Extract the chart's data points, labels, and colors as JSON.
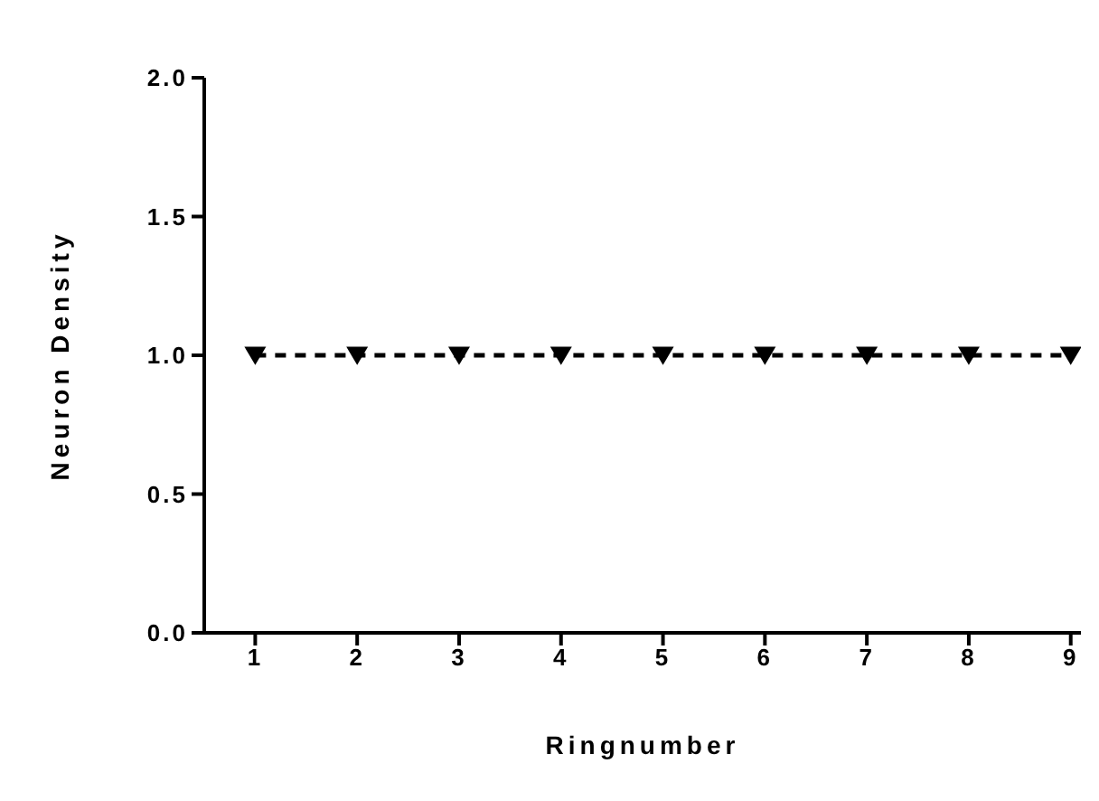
{
  "chart_data": {
    "type": "line",
    "xlabel": "Ringnumber",
    "ylabel": "Neuron Density",
    "x": [
      1,
      2,
      3,
      4,
      5,
      6,
      7,
      8,
      9
    ],
    "series": [
      {
        "color": "#000000",
        "values": [
          1,
          1,
          1,
          1,
          1,
          1,
          1,
          1,
          1
        ]
      }
    ],
    "xlim": [
      0.5,
      9.1
    ],
    "xticks": [
      1,
      2,
      3,
      4,
      5,
      6,
      7,
      8,
      9
    ],
    "ylim": [
      0,
      2
    ],
    "yticks": [
      {
        "value": 0,
        "label": "0.0"
      },
      {
        "value": 0.5,
        "label": "0.5"
      },
      {
        "value": 1,
        "label": "1.0"
      },
      {
        "value": 1.5,
        "label": "1.5"
      },
      {
        "value": 2,
        "label": "2.0"
      }
    ],
    "grid": false,
    "marker": "triangle",
    "line_style": "dashed"
  }
}
